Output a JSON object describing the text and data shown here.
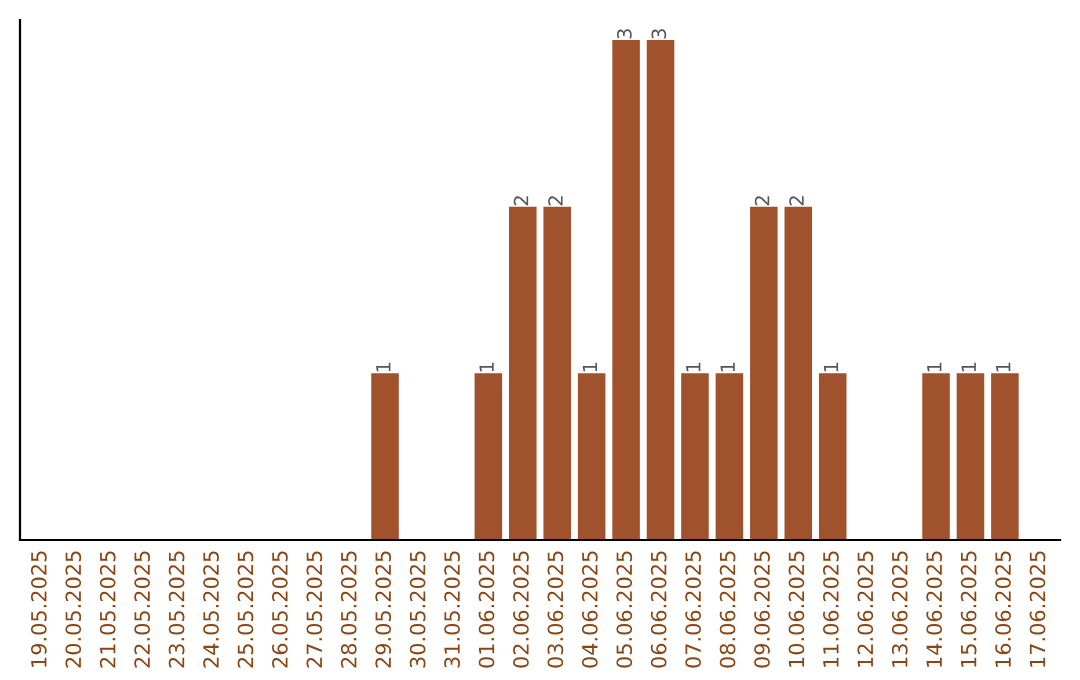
{
  "chart_data": {
    "type": "bar",
    "categories": [
      "19.05.2025",
      "20.05.2025",
      "21.05.2025",
      "22.05.2025",
      "23.05.2025",
      "24.05.2025",
      "25.05.2025",
      "26.05.2025",
      "27.05.2025",
      "28.05.2025",
      "29.05.2025",
      "30.05.2025",
      "31.05.2025",
      "01.06.2025",
      "02.06.2025",
      "03.06.2025",
      "04.06.2025",
      "05.06.2025",
      "06.06.2025",
      "07.06.2025",
      "08.06.2025",
      "09.06.2025",
      "10.06.2025",
      "11.06.2025",
      "12.06.2025",
      "13.06.2025",
      "14.06.2025",
      "15.06.2025",
      "16.06.2025",
      "17.06.2025"
    ],
    "values": [
      0,
      0,
      0,
      0,
      0,
      0,
      0,
      0,
      0,
      0,
      1,
      0,
      0,
      1,
      2,
      2,
      1,
      3,
      3,
      1,
      1,
      2,
      2,
      1,
      0,
      0,
      1,
      1,
      1,
      0
    ],
    "value_labels": [
      null,
      null,
      null,
      null,
      null,
      null,
      null,
      null,
      null,
      null,
      "1",
      null,
      null,
      "1",
      "2",
      "2",
      "1",
      "3",
      "3",
      "1",
      "1",
      "2",
      "2",
      "1",
      null,
      null,
      "1",
      "1",
      "1",
      null
    ],
    "color": "#a0522d",
    "grid": false,
    "legend": false,
    "tick_labels": "x"
  }
}
